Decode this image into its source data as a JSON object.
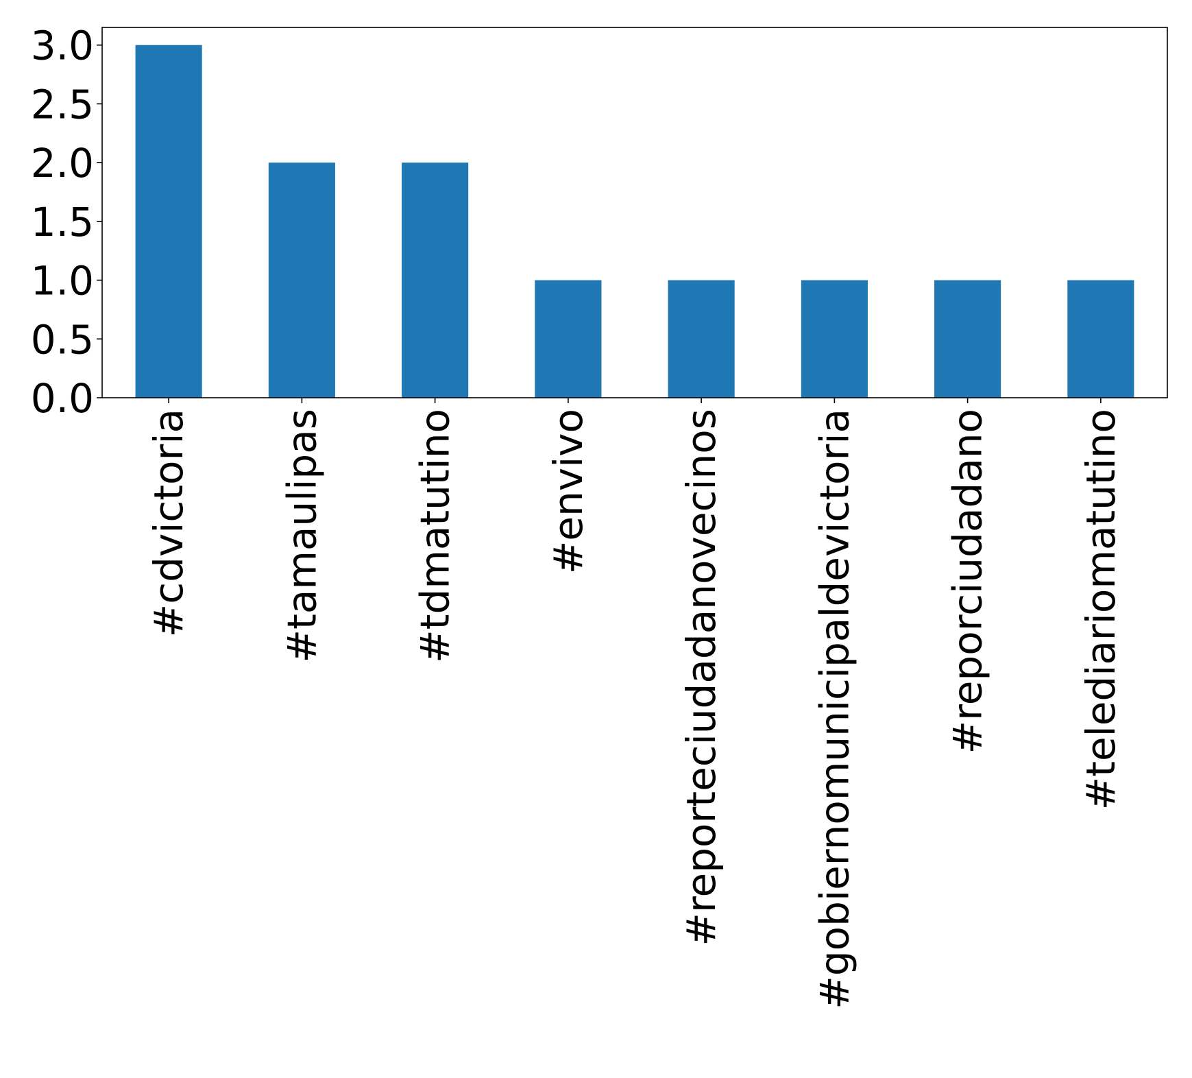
{
  "chart_data": {
    "type": "bar",
    "categories": [
      "#cdvictoria",
      "#tamaulipas",
      "#tdmatutino",
      "#envivo",
      "#reporteciudadanovecinos",
      "#gobiernomunicipaldevictoria",
      "#reporciudadano",
      "#telediariomatutino"
    ],
    "values": [
      3,
      2,
      2,
      1,
      1,
      1,
      1,
      1
    ],
    "yticks": [
      "0.0",
      "0.5",
      "1.0",
      "1.5",
      "2.0",
      "2.5",
      "3.0"
    ],
    "ylim": [
      0,
      3.15
    ],
    "grid": false,
    "bar_color": "#1f77b4",
    "title": "",
    "xlabel": "",
    "ylabel": ""
  }
}
